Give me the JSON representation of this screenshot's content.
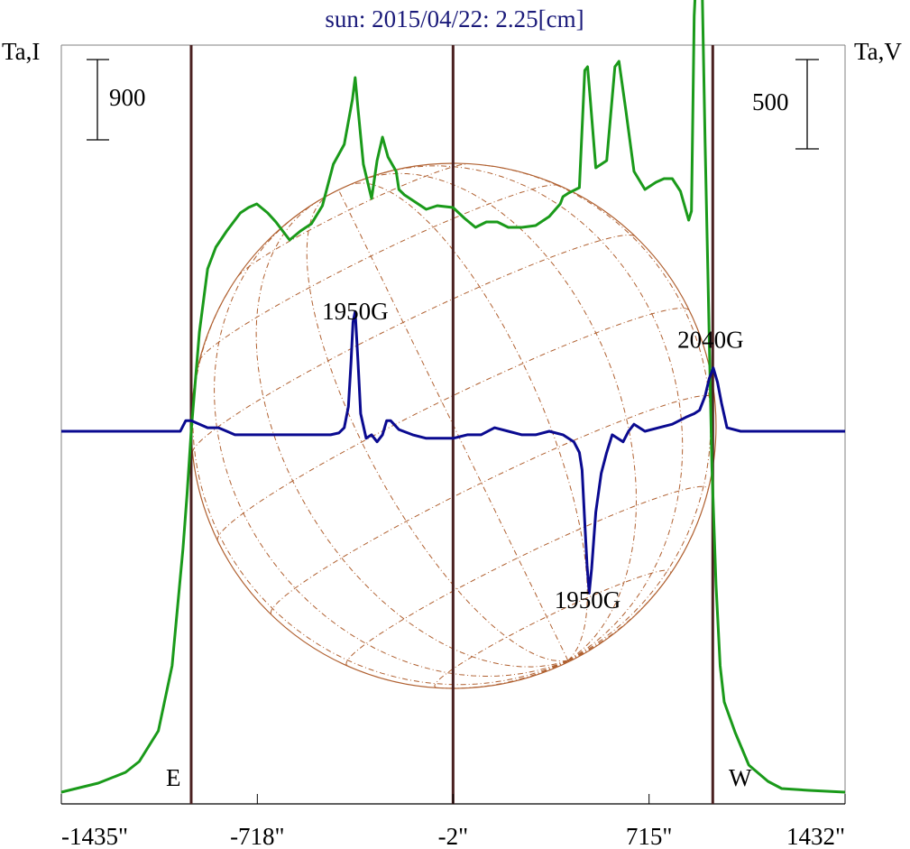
{
  "title": "sun: 2015/04/22: 2.25[cm]",
  "left_axis_label": "Ta,I",
  "right_axis_label": "Ta,V",
  "scale_left_value": "900",
  "scale_right_value": "500",
  "east_label": "E",
  "west_label": "W",
  "colors": {
    "title": "#1a1a7a",
    "axis": "#000000",
    "frame": "#808080",
    "vertical_lines": "#4a2020",
    "disk": "#b06030",
    "intensity": "#1a9a1a",
    "polarization": "#0a0a90"
  },
  "chart_data": {
    "type": "line",
    "xlim": [
      -1435,
      1432
    ],
    "xticks": [
      -1435,
      -718,
      -2,
      715,
      1432
    ],
    "xtick_labels": [
      "-1435\"",
      "-718\"",
      "-2\"",
      "715\"",
      "1432\""
    ],
    "vertical_lines": [
      -960,
      -2,
      948
    ],
    "solar_disk": {
      "center_x": 0,
      "radius": 960
    },
    "intensity_scale": 900,
    "polarization_scale": 500,
    "annotations": [
      {
        "text": "1950G",
        "series": "intensity",
        "x": -360
      },
      {
        "text": "1950G",
        "series": "polarization",
        "x": 490
      },
      {
        "text": "2040G",
        "series": "polarization",
        "x": 940
      }
    ],
    "series": [
      {
        "key": "intensity",
        "x": [
          -1435,
          -1300,
          -1200,
          -1150,
          -1080,
          -1030,
          -990,
          -975,
          -960,
          -930,
          -900,
          -870,
          -830,
          -780,
          -750,
          -720,
          -680,
          -650,
          -620,
          -600,
          -560,
          -520,
          -480,
          -440,
          -400,
          -370,
          -360,
          -350,
          -330,
          -300,
          -280,
          -260,
          -240,
          -210,
          -200,
          -180,
          -150,
          -100,
          -60,
          -2,
          40,
          80,
          120,
          160,
          200,
          250,
          300,
          350,
          390,
          400,
          420,
          460,
          480,
          490,
          500,
          520,
          560,
          590,
          605,
          630,
          660,
          700,
          740,
          770,
          800,
          830,
          860,
          870,
          880,
          890,
          900,
          910,
          920,
          930,
          945,
          960,
          975,
          990,
          1030,
          1080,
          1150,
          1200,
          1300,
          1432
        ],
        "y": [
          0,
          50,
          110,
          170,
          340,
          700,
          1350,
          1650,
          2000,
          2550,
          2900,
          3020,
          3110,
          3210,
          3240,
          3260,
          3210,
          3160,
          3100,
          3060,
          3110,
          3150,
          3250,
          3480,
          3590,
          3840,
          3960,
          3790,
          3480,
          3290,
          3500,
          3630,
          3520,
          3440,
          3340,
          3310,
          3280,
          3230,
          3250,
          3240,
          3180,
          3130,
          3160,
          3160,
          3130,
          3130,
          3140,
          3190,
          3260,
          3300,
          3320,
          3350,
          4000,
          4020,
          3840,
          3460,
          3500,
          4020,
          4050,
          3780,
          3440,
          3340,
          3380,
          3400,
          3400,
          3330,
          3170,
          3220,
          4300,
          4620,
          4580,
          4400,
          3600,
          2900,
          1800,
          1150,
          700,
          500,
          330,
          150,
          60,
          20,
          10,
          0
        ]
      },
      {
        "key": "polarization",
        "x": [
          -1435,
          -1000,
          -980,
          -960,
          -900,
          -860,
          -800,
          -700,
          -600,
          -500,
          -450,
          -420,
          -400,
          -385,
          -375,
          -368,
          -360,
          -350,
          -340,
          -320,
          -300,
          -280,
          -260,
          -245,
          -230,
          -200,
          -150,
          -100,
          -2,
          50,
          100,
          150,
          200,
          250,
          300,
          350,
          400,
          440,
          460,
          470,
          480,
          488,
          496,
          505,
          520,
          540,
          560,
          580,
          600,
          620,
          640,
          660,
          700,
          750,
          800,
          850,
          880,
          900,
          920,
          935,
          950,
          965,
          980,
          1000,
          1050,
          1100,
          1200,
          1432
        ],
        "y": [
          0,
          0,
          30,
          30,
          10,
          10,
          -10,
          -10,
          -10,
          -10,
          -10,
          -5,
          10,
          70,
          200,
          310,
          340,
          200,
          50,
          -20,
          -10,
          -30,
          -10,
          30,
          30,
          5,
          -10,
          -20,
          -20,
          -10,
          -10,
          10,
          0,
          -10,
          -10,
          0,
          -10,
          -30,
          -60,
          -110,
          -260,
          -380,
          -460,
          -390,
          -230,
          -120,
          -60,
          -10,
          -20,
          -30,
          0,
          20,
          0,
          10,
          20,
          40,
          50,
          60,
          100,
          150,
          180,
          140,
          80,
          10,
          0,
          0,
          0,
          0
        ]
      }
    ]
  }
}
